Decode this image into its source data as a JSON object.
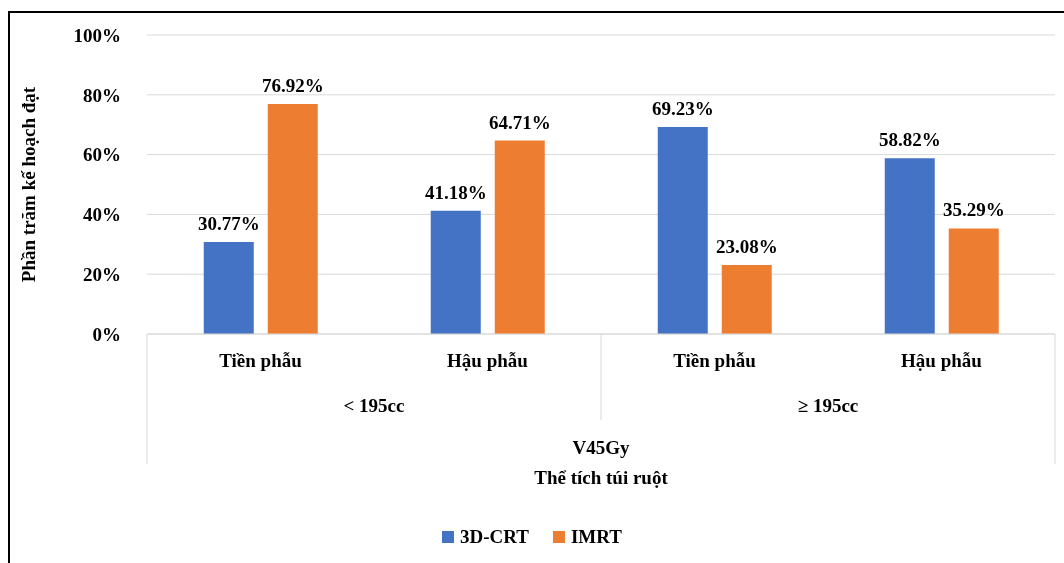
{
  "chart_data": {
    "type": "bar",
    "ylabel": "Phần trăm kế hoạch đạt",
    "categories": [
      "Tiền phẫu",
      "Hậu phẫu",
      "Tiền phẫu",
      "Hậu phẫu"
    ],
    "series": [
      {
        "name": "3D-CRT",
        "color": "#4472c4",
        "values": [
          30.77,
          41.18,
          69.23,
          58.82
        ],
        "value_labels": [
          "30.77%",
          "41.18%",
          "69.23%",
          "58.82%"
        ]
      },
      {
        "name": "IMRT",
        "color": "#ed7d31",
        "values": [
          76.92,
          64.71,
          23.08,
          35.29
        ],
        "value_labels": [
          "76.92%",
          "64.71%",
          "23.08%",
          "35.29%"
        ]
      }
    ],
    "ylim": [
      0,
      100
    ],
    "yticks": [
      {
        "value": 0,
        "label": "0%"
      },
      {
        "value": 20,
        "label": "20%"
      },
      {
        "value": 40,
        "label": "40%"
      },
      {
        "value": 60,
        "label": "60%"
      },
      {
        "value": 80,
        "label": "80%"
      },
      {
        "value": 100,
        "label": "100%"
      }
    ],
    "annotations": [
      "< 195cc",
      "≥ 195cc",
      "V45Gy",
      "Thể tích túi ruột"
    ],
    "grid": "y",
    "legend": "bottom"
  }
}
